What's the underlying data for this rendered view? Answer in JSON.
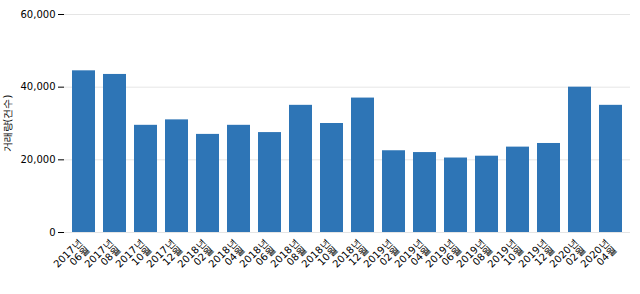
{
  "chart_data": {
    "type": "bar",
    "categories": [
      "2017년\n06월",
      "2017년\n08월",
      "2017년\n10월",
      "2017년\n12월",
      "2018년\n02월",
      "2018년\n04월",
      "2018년\n06월",
      "2018년\n08월",
      "2018년\n10월",
      "2018년\n12월",
      "2019년\n02월",
      "2019년\n04월",
      "2019년\n06월",
      "2019년\n08월",
      "2019년\n10월",
      "2019년\n12월",
      "2020년\n02월",
      "2020년\n04월"
    ],
    "values": [
      44500,
      43500,
      29500,
      31000,
      27000,
      29500,
      27500,
      35000,
      30000,
      37000,
      22500,
      22000,
      20500,
      21000,
      23500,
      24500,
      40000,
      35000
    ],
    "color": "#2e75b6",
    "ylabel": "거래량(건수)",
    "ylim": [
      0,
      60000
    ],
    "yticks": [
      0,
      {
        "value": 20000,
        "label": "20,000"
      },
      {
        "value": 40000,
        "label": "40,000"
      },
      {
        "value": 60000,
        "label": "60,000"
      }
    ],
    "grid": true
  }
}
